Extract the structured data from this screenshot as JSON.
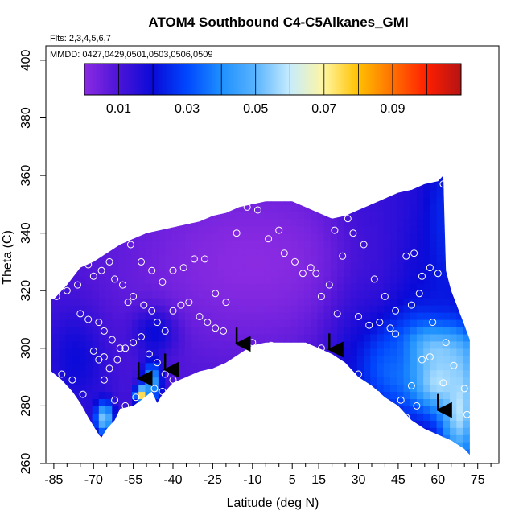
{
  "chart_data": {
    "type": "heatmap",
    "title": "ATOM4 Southbound C4-C5Alkanes_GMI",
    "subtitle_flights": "Flts: 2,3,4,5,6,7",
    "subtitle_dates": "MMDD: 0427,0429,0501,0503,0506,0509",
    "xlabel": "Latitude (deg N)",
    "ylabel": "Theta (C)",
    "xlim": [
      -88,
      83
    ],
    "ylim": [
      260,
      405
    ],
    "x_ticks": [
      -85,
      -70,
      -55,
      -40,
      -25,
      -10,
      5,
      15,
      30,
      45,
      60,
      75
    ],
    "x_minor_ticks": [
      -80,
      -75,
      -65,
      -60,
      -50,
      -45,
      -35,
      -30,
      -20,
      -15,
      -5,
      0,
      10,
      20,
      25,
      35,
      40,
      50,
      55,
      65,
      70,
      80
    ],
    "y_ticks": [
      260,
      280,
      300,
      320,
      340,
      360,
      380,
      400
    ],
    "colorbar": {
      "range": [
        0,
        0.11
      ],
      "tick_labels": [
        "0.01",
        "0.03",
        "0.05",
        "0.07",
        "0.09"
      ],
      "tick_values": [
        0.01,
        0.03,
        0.05,
        0.07,
        0.09
      ],
      "colors": [
        "#8a2be2",
        "#4b14d8",
        "#0a0ad8",
        "#0048ff",
        "#1e90ff",
        "#5ab4ff",
        "#c6ecff",
        "#fff6a0",
        "#ffc000",
        "#ff7000",
        "#ff1e00",
        "#b41414"
      ]
    },
    "upper_boundary": [
      [
        -85,
        317
      ],
      [
        -80,
        322
      ],
      [
        -75,
        328
      ],
      [
        -70,
        330
      ],
      [
        -65,
        333
      ],
      [
        -60,
        336
      ],
      [
        -55,
        338
      ],
      [
        -50,
        340
      ],
      [
        -45,
        341
      ],
      [
        -40,
        342
      ],
      [
        -35,
        343
      ],
      [
        -30,
        344
      ],
      [
        -25,
        346
      ],
      [
        -20,
        347
      ],
      [
        -15,
        349
      ],
      [
        -10,
        350
      ],
      [
        -5,
        351
      ],
      [
        0,
        351
      ],
      [
        5,
        351
      ],
      [
        10,
        349
      ],
      [
        15,
        347
      ],
      [
        20,
        345
      ],
      [
        25,
        346
      ],
      [
        30,
        348
      ],
      [
        35,
        350
      ],
      [
        40,
        352
      ],
      [
        45,
        354
      ],
      [
        50,
        355
      ],
      [
        55,
        357
      ],
      [
        60,
        358
      ],
      [
        62,
        360
      ],
      [
        63,
        327
      ],
      [
        65,
        320
      ],
      [
        70,
        308
      ],
      [
        72,
        303
      ]
    ],
    "lower_boundary": [
      [
        72,
        263
      ],
      [
        70,
        265
      ],
      [
        65,
        268
      ],
      [
        60,
        270
      ],
      [
        55,
        272
      ],
      [
        50,
        275
      ],
      [
        45,
        280
      ],
      [
        40,
        283
      ],
      [
        35,
        287
      ],
      [
        30,
        290
      ],
      [
        25,
        295
      ],
      [
        20,
        298
      ],
      [
        15,
        300
      ],
      [
        10,
        302
      ],
      [
        5,
        302
      ],
      [
        0,
        302
      ],
      [
        -5,
        302
      ],
      [
        -10,
        301
      ],
      [
        -15,
        298
      ],
      [
        -20,
        295
      ],
      [
        -25,
        293
      ],
      [
        -30,
        292
      ],
      [
        -35,
        290
      ],
      [
        -40,
        288
      ],
      [
        -42,
        286
      ],
      [
        -44,
        284
      ],
      [
        -46,
        281
      ],
      [
        -48,
        285
      ],
      [
        -52,
        282
      ],
      [
        -55,
        280
      ],
      [
        -60,
        279
      ],
      [
        -62,
        275
      ],
      [
        -65,
        272
      ],
      [
        -67,
        269
      ],
      [
        -68,
        270
      ],
      [
        -72,
        276
      ],
      [
        -75,
        281
      ],
      [
        -78,
        285
      ],
      [
        -82,
        289
      ],
      [
        -86,
        292
      ],
      [
        -86,
        317
      ]
    ],
    "field_background": 0.012,
    "features": [
      {
        "x": -66,
        "y": 276,
        "sx": 2.5,
        "sy": 4,
        "value": 0.06
      },
      {
        "x": -48,
        "y": 289,
        "sx": 2.5,
        "sy": 5,
        "value": 0.055
      },
      {
        "x": -52,
        "y": 284,
        "sx": 1.5,
        "sy": 2,
        "value": 0.085
      },
      {
        "x": -76,
        "y": 298,
        "sx": 8,
        "sy": 12,
        "value": 0.022
      },
      {
        "x": -46,
        "y": 307,
        "sx": 6,
        "sy": 6,
        "value": 0.035
      },
      {
        "x": 28,
        "y": 320,
        "sx": 10,
        "sy": 25,
        "value": 0.03
      },
      {
        "x": 50,
        "y": 315,
        "sx": 12,
        "sy": 30,
        "value": 0.028
      },
      {
        "x": 58,
        "y": 299,
        "sx": 10,
        "sy": 7,
        "value": 0.07
      },
      {
        "x": 60,
        "y": 290,
        "sx": 8,
        "sy": 8,
        "value": 0.065
      },
      {
        "x": 68,
        "y": 280,
        "sx": 5,
        "sy": 15,
        "value": 0.06
      },
      {
        "x": 62,
        "y": 340,
        "sx": 6,
        "sy": 20,
        "value": 0.03
      },
      {
        "x": 42,
        "y": 296,
        "sx": 8,
        "sy": 10,
        "value": 0.04
      },
      {
        "x": -10,
        "y": 330,
        "sx": 40,
        "sy": 25,
        "value": 0.0
      }
    ],
    "sample_points": [
      [
        -84,
        318
      ],
      [
        -80,
        320
      ],
      [
        -76,
        322
      ],
      [
        -72,
        329
      ],
      [
        -70,
        325
      ],
      [
        -67,
        327
      ],
      [
        -64,
        330
      ],
      [
        -62,
        324
      ],
      [
        -59,
        322
      ],
      [
        -56,
        336
      ],
      [
        -52,
        330
      ],
      [
        -48,
        327
      ],
      [
        -44,
        323
      ],
      [
        -40,
        327
      ],
      [
        -36,
        328
      ],
      [
        -32,
        331
      ],
      [
        -28,
        331
      ],
      [
        -24,
        319
      ],
      [
        -20,
        316
      ],
      [
        -16,
        340
      ],
      [
        -12,
        349
      ],
      [
        -8,
        348
      ],
      [
        -4,
        338
      ],
      [
        0,
        341
      ],
      [
        2,
        333
      ],
      [
        6,
        330
      ],
      [
        9,
        326
      ],
      [
        12,
        328
      ],
      [
        14,
        326
      ],
      [
        16,
        318
      ],
      [
        19,
        322
      ],
      [
        21,
        341
      ],
      [
        24,
        332
      ],
      [
        26,
        345
      ],
      [
        28,
        340
      ],
      [
        32,
        336
      ],
      [
        36,
        324
      ],
      [
        40,
        318
      ],
      [
        44,
        313
      ],
      [
        48,
        332
      ],
      [
        51,
        333
      ],
      [
        54,
        325
      ],
      [
        57,
        328
      ],
      [
        60,
        326
      ],
      [
        62,
        357
      ],
      [
        -75,
        312
      ],
      [
        -72,
        310
      ],
      [
        -68,
        309
      ],
      [
        -66,
        306
      ],
      [
        -63,
        303
      ],
      [
        -60,
        300
      ],
      [
        -57,
        316
      ],
      [
        -55,
        318
      ],
      [
        -51,
        315
      ],
      [
        -48,
        313
      ],
      [
        -46,
        309
      ],
      [
        -43,
        306
      ],
      [
        -40,
        313
      ],
      [
        -37,
        315
      ],
      [
        -34,
        316
      ],
      [
        -30,
        311
      ],
      [
        -27,
        309
      ],
      [
        -24,
        307
      ],
      [
        -21,
        306
      ],
      [
        -70,
        299
      ],
      [
        -68,
        296
      ],
      [
        -66,
        297
      ],
      [
        -64,
        293
      ],
      [
        -61,
        296
      ],
      [
        -58,
        300
      ],
      [
        -55,
        302
      ],
      [
        -52,
        304
      ],
      [
        -49,
        298
      ],
      [
        -46,
        295
      ],
      [
        -43,
        291
      ],
      [
        -40,
        289
      ],
      [
        -37,
        287
      ],
      [
        -34,
        286
      ],
      [
        -66,
        289
      ],
      [
        -62,
        282
      ],
      [
        -58,
        280
      ],
      [
        -54,
        283
      ],
      [
        -50,
        282
      ],
      [
        -47,
        286
      ],
      [
        -44,
        285
      ],
      [
        -74,
        284
      ],
      [
        -78,
        289
      ],
      [
        -82,
        291
      ],
      [
        -10,
        302
      ],
      [
        -3,
        301
      ],
      [
        3,
        300
      ],
      [
        10,
        300
      ],
      [
        16,
        300
      ],
      [
        22,
        312
      ],
      [
        30,
        311
      ],
      [
        34,
        308
      ],
      [
        38,
        309
      ],
      [
        42,
        307
      ],
      [
        44,
        305
      ],
      [
        50,
        315
      ],
      [
        53,
        319
      ],
      [
        58,
        309
      ],
      [
        63,
        302
      ],
      [
        66,
        294
      ],
      [
        70,
        286
      ],
      [
        71,
        277
      ],
      [
        30,
        291
      ],
      [
        37,
        284
      ],
      [
        42,
        280
      ],
      [
        46,
        282
      ],
      [
        50,
        287
      ],
      [
        54,
        296
      ],
      [
        57,
        297
      ],
      [
        48,
        276
      ],
      [
        52,
        280
      ],
      [
        62,
        288
      ]
    ],
    "arrows": [
      [
        -53,
        289
      ],
      [
        -43,
        292
      ],
      [
        -16,
        301
      ],
      [
        19,
        299
      ],
      [
        60,
        278
      ]
    ]
  }
}
